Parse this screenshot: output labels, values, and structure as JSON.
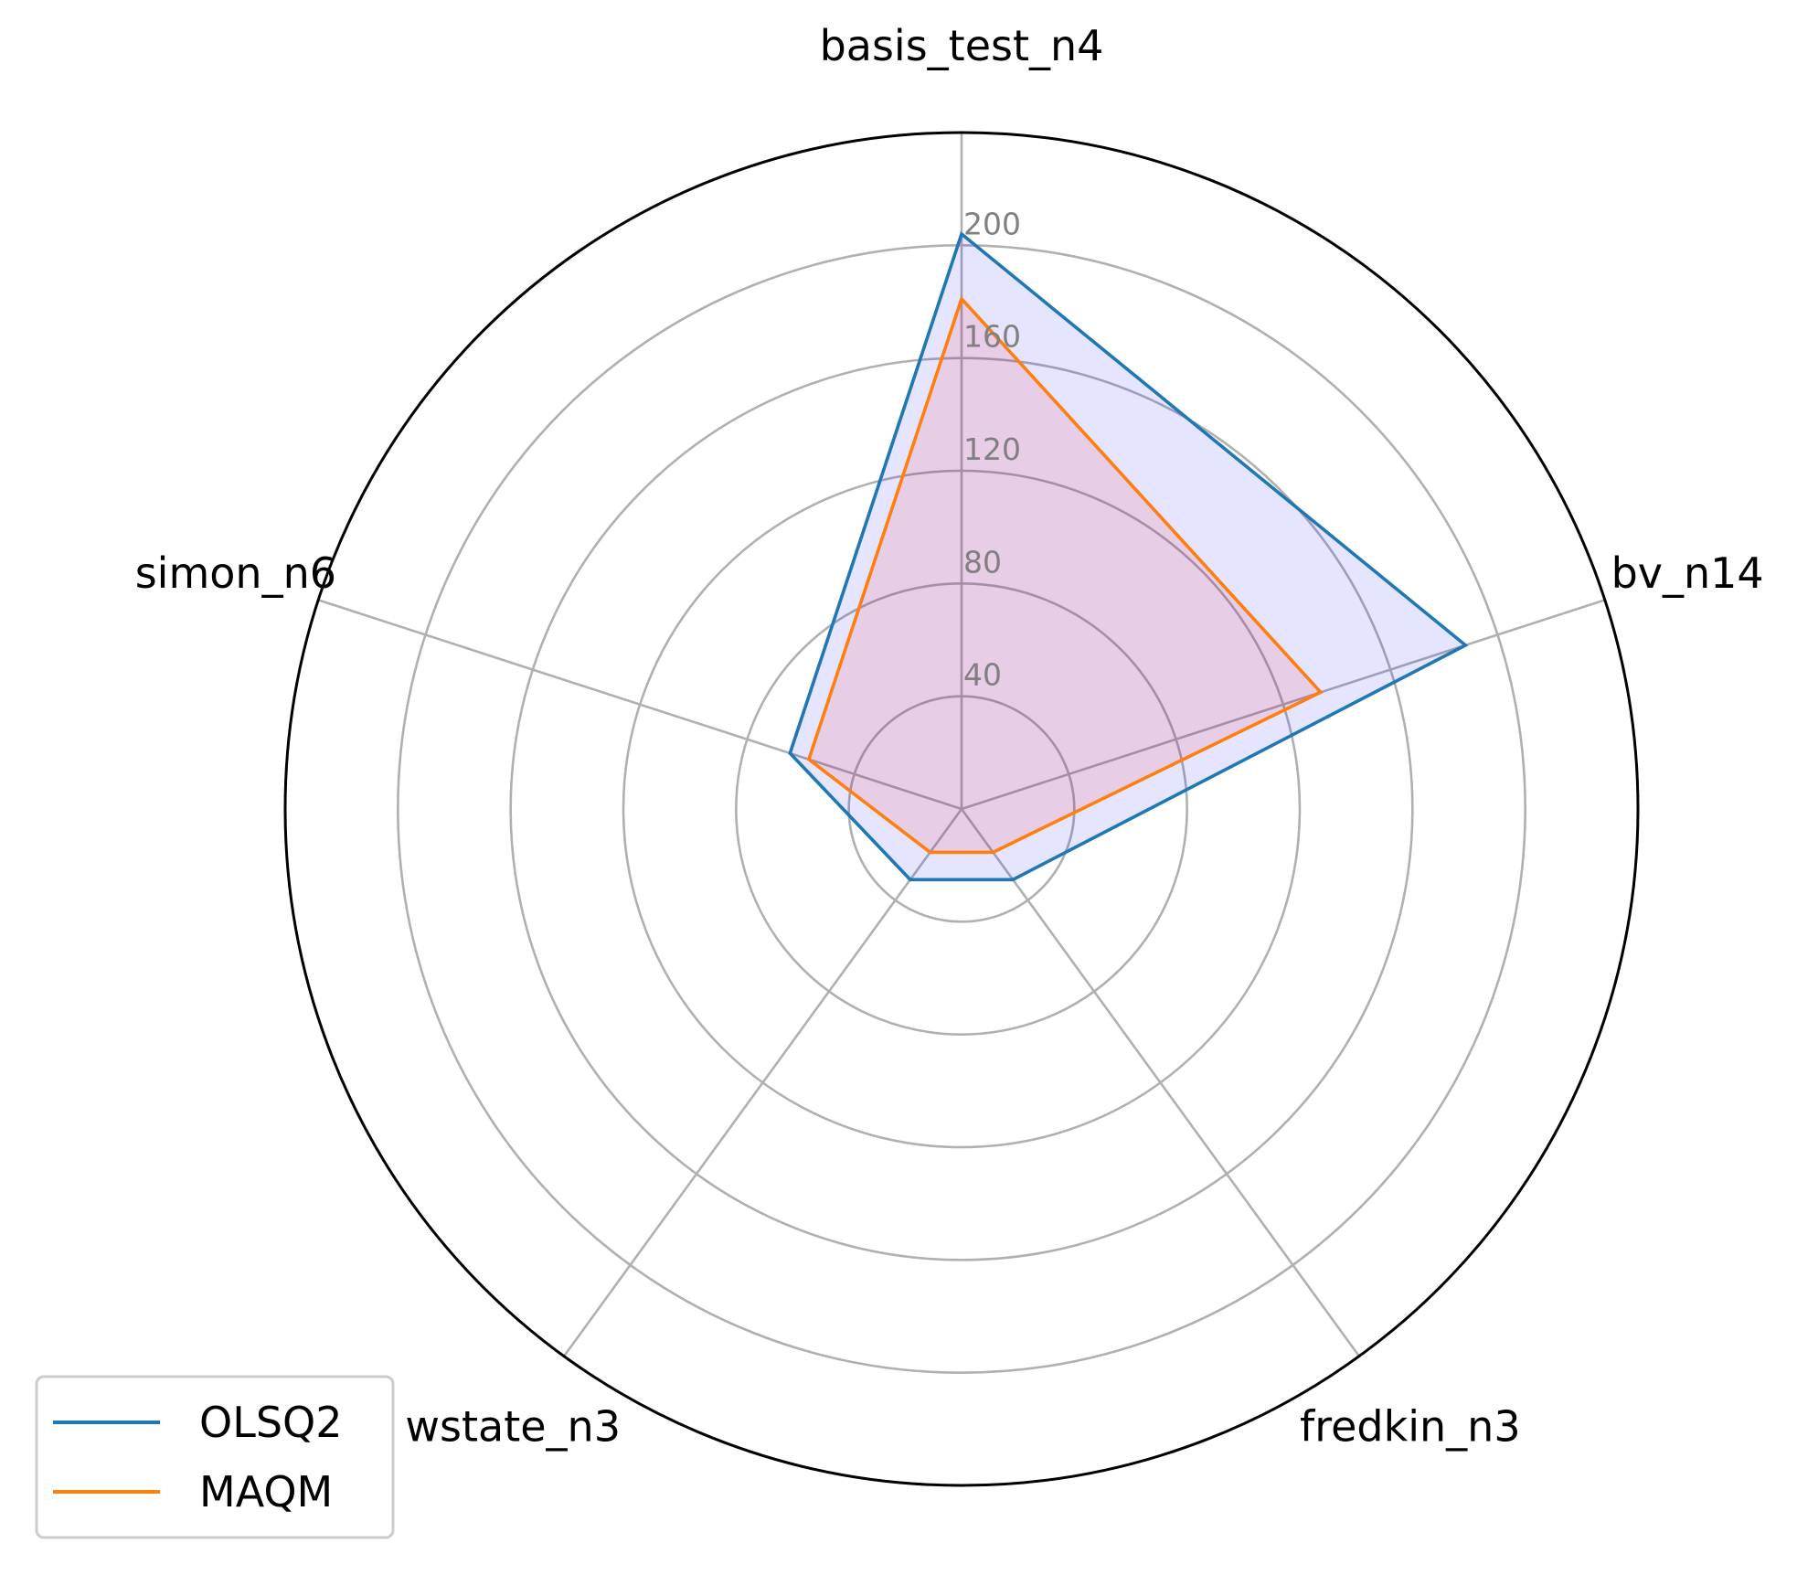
{
  "chart_data": {
    "type": "radar",
    "categories": [
      "basis_test_n4",
      "bv_n14",
      "fredkin_n3",
      "wstate_n3",
      "simon_n6"
    ],
    "series": [
      {
        "name": "OLSQ2",
        "values": [
          204,
          188,
          31,
          31,
          64
        ],
        "color": "#1f77b4",
        "fill": "#0000ff"
      },
      {
        "name": "MAQM",
        "values": [
          181,
          134,
          19,
          19,
          57
        ],
        "color": "#ff7f0e",
        "fill": "#ff0000"
      }
    ],
    "rlim": [
      0,
      240
    ],
    "rticks": [
      40,
      80,
      120,
      160,
      200
    ],
    "rtick_labels": [
      "40",
      "80",
      "120",
      "160",
      "200"
    ],
    "grid": true,
    "legend_position": "lower-left",
    "title": "",
    "xlabel": "",
    "ylabel": ""
  }
}
